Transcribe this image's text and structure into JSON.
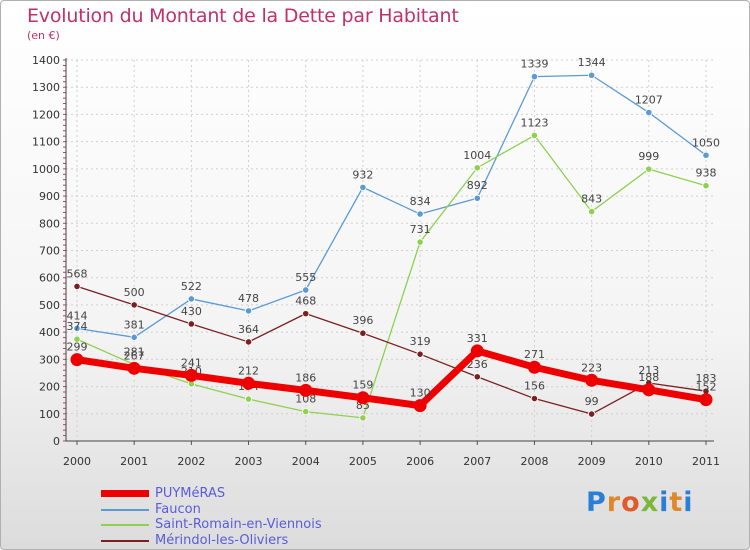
{
  "chart_data": {
    "type": "line",
    "title": "Evolution du Montant de la Dette par Habitant",
    "ylabel": "(en €)",
    "xlabel": "",
    "ylim": [
      0,
      1400
    ],
    "yticks": [
      0,
      100,
      200,
      300,
      400,
      500,
      600,
      700,
      800,
      900,
      1000,
      1100,
      1200,
      1300,
      1400
    ],
    "categories": [
      "2000",
      "2001",
      "2002",
      "2003",
      "2004",
      "2005",
      "2006",
      "2007",
      "2008",
      "2009",
      "2010",
      "2011"
    ],
    "grid": true,
    "legend_position": "bottom-left",
    "series": [
      {
        "name": "Faucon",
        "color": "#5b9bd5",
        "values": [
          414,
          381,
          522,
          478,
          555,
          932,
          834,
          892,
          1339,
          1344,
          1207,
          1050
        ]
      },
      {
        "name": "Saint-Romain-en-Viennois",
        "color": "#8fd14f",
        "values": [
          374,
          281,
          210,
          154,
          108,
          85,
          731,
          1004,
          1123,
          843,
          999,
          938
        ]
      },
      {
        "name": "Mérindol-les-Oliviers",
        "color": "#7b2020",
        "values": [
          568,
          500,
          430,
          364,
          468,
          396,
          319,
          236,
          156,
          99,
          213,
          183
        ]
      },
      {
        "name": "PUYMéRAS",
        "color": "#ee0000",
        "values": [
          299,
          267,
          241,
          212,
          186,
          159,
          130,
          331,
          271,
          223,
          188,
          152
        ]
      }
    ],
    "legend": [
      "PUYMéRAS",
      "Faucon",
      "Saint-Romain-en-Viennois",
      "Mérindol-les-Oliviers"
    ]
  },
  "brand": {
    "letters": [
      "P",
      "r",
      "o",
      "x",
      "i",
      "t",
      "i"
    ]
  }
}
